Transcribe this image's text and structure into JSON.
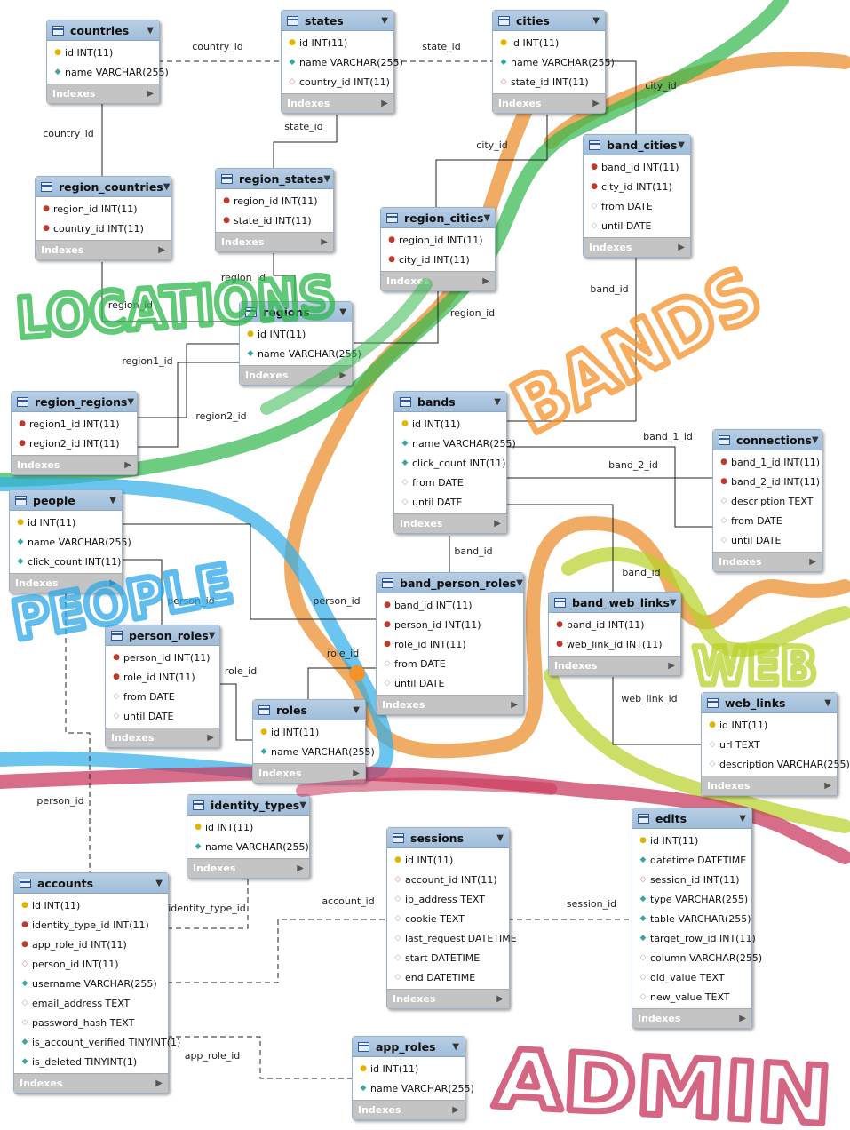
{
  "footer_label": "Indexes",
  "tables": [
    {
      "name": "countries",
      "columns": [
        {
          "icon": "pk",
          "text": "id INT(11)"
        },
        {
          "icon": "attr",
          "text": "name VARCHAR(255)"
        }
      ]
    },
    {
      "name": "states",
      "columns": [
        {
          "icon": "pk",
          "text": "id INT(11)"
        },
        {
          "icon": "attr",
          "text": "name VARCHAR(255)"
        },
        {
          "icon": "fkd",
          "text": "country_id INT(11)"
        }
      ]
    },
    {
      "name": "cities",
      "columns": [
        {
          "icon": "pk",
          "text": "id INT(11)"
        },
        {
          "icon": "attr",
          "text": "name VARCHAR(255)"
        },
        {
          "icon": "fkd",
          "text": "state_id INT(11)"
        }
      ]
    },
    {
      "name": "region_countries",
      "columns": [
        {
          "icon": "fk",
          "text": "region_id INT(11)"
        },
        {
          "icon": "fk",
          "text": "country_id INT(11)"
        }
      ]
    },
    {
      "name": "region_states",
      "columns": [
        {
          "icon": "fk",
          "text": "region_id INT(11)"
        },
        {
          "icon": "fk",
          "text": "state_id INT(11)"
        }
      ]
    },
    {
      "name": "band_cities",
      "columns": [
        {
          "icon": "fk",
          "text": "band_id INT(11)"
        },
        {
          "icon": "fk",
          "text": "city_id INT(11)"
        },
        {
          "icon": "nattr",
          "text": "from DATE"
        },
        {
          "icon": "nattr",
          "text": "until DATE"
        }
      ]
    },
    {
      "name": "region_cities",
      "columns": [
        {
          "icon": "fk",
          "text": "region_id INT(11)"
        },
        {
          "icon": "fk",
          "text": "city_id INT(11)"
        }
      ]
    },
    {
      "name": "regions",
      "columns": [
        {
          "icon": "pk",
          "text": "id INT(11)"
        },
        {
          "icon": "attr",
          "text": "name VARCHAR(255)"
        }
      ]
    },
    {
      "name": "region_regions",
      "columns": [
        {
          "icon": "fk",
          "text": "region1_id INT(11)"
        },
        {
          "icon": "fk",
          "text": "region2_id INT(11)"
        }
      ]
    },
    {
      "name": "bands",
      "columns": [
        {
          "icon": "pk",
          "text": "id INT(11)"
        },
        {
          "icon": "attr",
          "text": "name VARCHAR(255)"
        },
        {
          "icon": "attr",
          "text": "click_count INT(11)"
        },
        {
          "icon": "nattr",
          "text": "from DATE"
        },
        {
          "icon": "nattr",
          "text": "until DATE"
        }
      ]
    },
    {
      "name": "connections",
      "columns": [
        {
          "icon": "fk",
          "text": "band_1_id INT(11)"
        },
        {
          "icon": "fk",
          "text": "band_2_id INT(11)"
        },
        {
          "icon": "nattr",
          "text": "description TEXT"
        },
        {
          "icon": "nattr",
          "text": "from DATE"
        },
        {
          "icon": "nattr",
          "text": "until DATE"
        }
      ]
    },
    {
      "name": "people",
      "columns": [
        {
          "icon": "pk",
          "text": "id INT(11)"
        },
        {
          "icon": "attr",
          "text": "name VARCHAR(255)"
        },
        {
          "icon": "attr",
          "text": "click_count INT(11)"
        }
      ]
    },
    {
      "name": "band_person_roles",
      "columns": [
        {
          "icon": "fk",
          "text": "band_id INT(11)"
        },
        {
          "icon": "fk",
          "text": "person_id INT(11)"
        },
        {
          "icon": "fk",
          "text": "role_id INT(11)"
        },
        {
          "icon": "nattr",
          "text": "from DATE"
        },
        {
          "icon": "nattr",
          "text": "until DATE"
        }
      ]
    },
    {
      "name": "band_web_links",
      "columns": [
        {
          "icon": "fk",
          "text": "band_id INT(11)"
        },
        {
          "icon": "fk",
          "text": "web_link_id INT(11)"
        }
      ]
    },
    {
      "name": "person_roles",
      "columns": [
        {
          "icon": "fk",
          "text": "person_id INT(11)"
        },
        {
          "icon": "fk",
          "text": "role_id INT(11)"
        },
        {
          "icon": "nattr",
          "text": "from DATE"
        },
        {
          "icon": "nattr",
          "text": "until DATE"
        }
      ]
    },
    {
      "name": "roles",
      "columns": [
        {
          "icon": "pk",
          "text": "id INT(11)"
        },
        {
          "icon": "attr",
          "text": "name VARCHAR(255)"
        }
      ]
    },
    {
      "name": "web_links",
      "columns": [
        {
          "icon": "pk",
          "text": "id INT(11)"
        },
        {
          "icon": "nattr",
          "text": "url TEXT"
        },
        {
          "icon": "nattr",
          "text": "description VARCHAR(255)"
        }
      ]
    },
    {
      "name": "identity_types",
      "columns": [
        {
          "icon": "pk",
          "text": "id INT(11)"
        },
        {
          "icon": "attr",
          "text": "name VARCHAR(255)"
        }
      ]
    },
    {
      "name": "sessions",
      "columns": [
        {
          "icon": "pk",
          "text": "id INT(11)"
        },
        {
          "icon": "fkd",
          "text": "account_id INT(11)"
        },
        {
          "icon": "nattr",
          "text": "ip_address TEXT"
        },
        {
          "icon": "nattr",
          "text": "cookie TEXT"
        },
        {
          "icon": "nattr",
          "text": "last_request DATETIME"
        },
        {
          "icon": "nattr",
          "text": "start DATETIME"
        },
        {
          "icon": "nattr",
          "text": "end DATETIME"
        }
      ]
    },
    {
      "name": "edits",
      "columns": [
        {
          "icon": "pk",
          "text": "id INT(11)"
        },
        {
          "icon": "attr",
          "text": "datetime DATETIME"
        },
        {
          "icon": "fkd",
          "text": "session_id INT(11)"
        },
        {
          "icon": "attr",
          "text": "type VARCHAR(255)"
        },
        {
          "icon": "attr",
          "text": "table VARCHAR(255)"
        },
        {
          "icon": "attr",
          "text": "target_row_id INT(11)"
        },
        {
          "icon": "nattr",
          "text": "column VARCHAR(255)"
        },
        {
          "icon": "nattr",
          "text": "old_value TEXT"
        },
        {
          "icon": "nattr",
          "text": "new_value TEXT"
        }
      ]
    },
    {
      "name": "accounts",
      "columns": [
        {
          "icon": "pk",
          "text": "id INT(11)"
        },
        {
          "icon": "fk",
          "text": "identity_type_id INT(11)"
        },
        {
          "icon": "fk",
          "text": "app_role_id INT(11)"
        },
        {
          "icon": "fkd",
          "text": "person_id INT(11)"
        },
        {
          "icon": "attr",
          "text": "username VARCHAR(255)"
        },
        {
          "icon": "nattr",
          "text": "email_address TEXT"
        },
        {
          "icon": "nattr",
          "text": "password_hash TEXT"
        },
        {
          "icon": "attr",
          "text": "is_account_verified TINYINT(1)"
        },
        {
          "icon": "attr",
          "text": "is_deleted TINYINT(1)"
        }
      ]
    },
    {
      "name": "app_roles",
      "columns": [
        {
          "icon": "pk",
          "text": "id INT(11)"
        },
        {
          "icon": "attr",
          "text": "name VARCHAR(255)"
        }
      ]
    }
  ],
  "relationship_labels": [
    "country_id",
    "state_id",
    "city_id",
    "country_id",
    "state_id",
    "city_id",
    "region_id",
    "region_id",
    "region_id",
    "region1_id",
    "region2_id",
    "band_id",
    "band_1_id",
    "band_2_id",
    "band_id",
    "band_id",
    "person_id",
    "person_id",
    "role_id",
    "role_id",
    "web_link_id",
    "person_id",
    "identity_type_id",
    "account_id",
    "session_id",
    "app_role_id"
  ],
  "annotations": [
    {
      "text": "LOCATIONS",
      "color": "#2db84a"
    },
    {
      "text": "BANDS",
      "color": "#f5922a"
    },
    {
      "text": "PEOPLE",
      "color": "#2ba8e8"
    },
    {
      "text": "WEB",
      "color": "#b8d22a"
    },
    {
      "text": "ADMIN",
      "color": "#c8345a"
    }
  ],
  "icon_legend": {
    "pk": "key-icon",
    "fk": "foreign-key-icon",
    "attr": "column-diamond-icon",
    "nattr": "nullable-column-diamond-icon",
    "fkd": "foreign-key-diamond-icon"
  }
}
